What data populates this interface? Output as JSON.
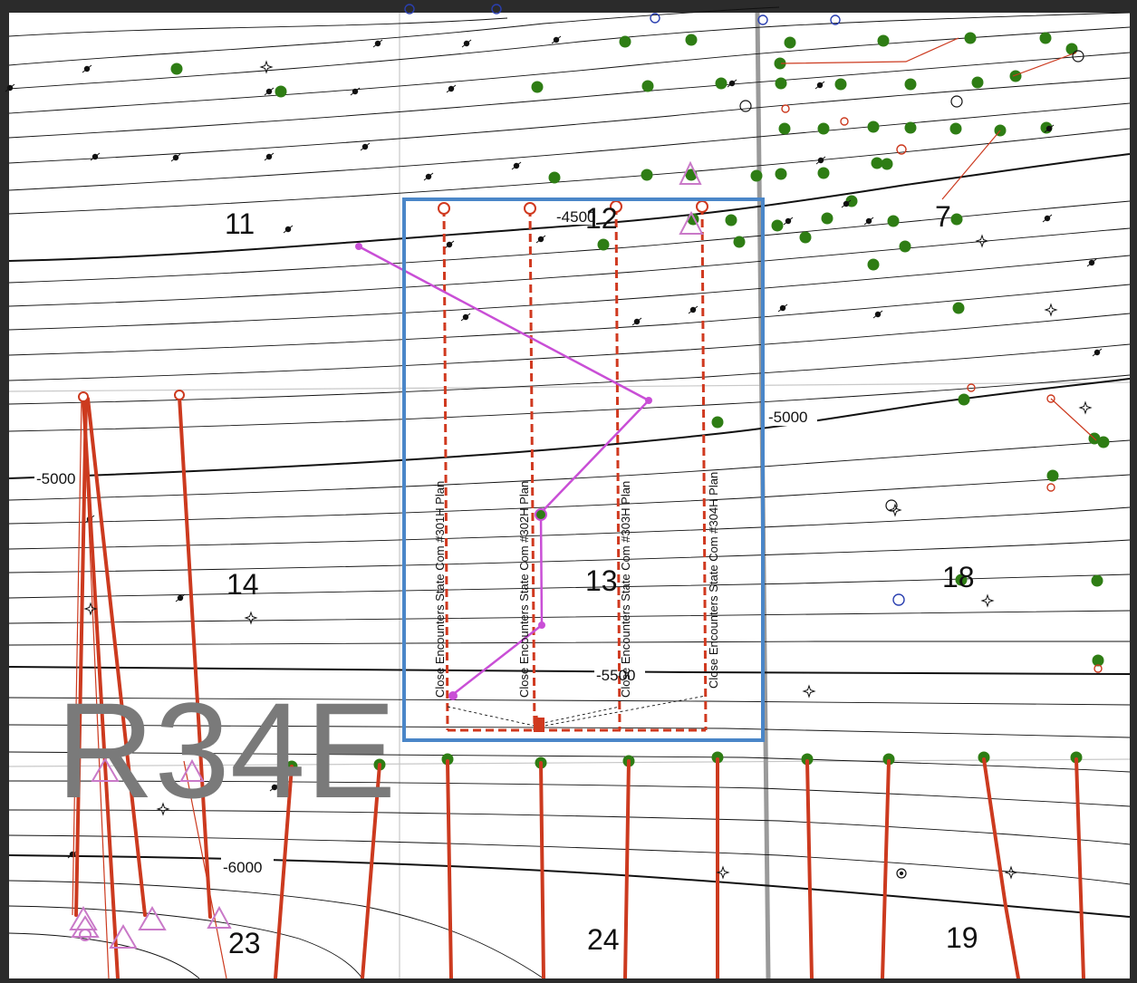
{
  "map": {
    "township_label": "R34E",
    "sections": [
      {
        "id": "s11",
        "label": "11"
      },
      {
        "id": "s12",
        "label": "12"
      },
      {
        "id": "s7",
        "label": "7"
      },
      {
        "id": "s14",
        "label": "14"
      },
      {
        "id": "s13",
        "label": "13"
      },
      {
        "id": "s18",
        "label": "18"
      },
      {
        "id": "s23",
        "label": "23"
      },
      {
        "id": "s24",
        "label": "24"
      },
      {
        "id": "s19",
        "label": "19"
      }
    ],
    "contour_labels": [
      {
        "id": "c4500",
        "label": "-4500"
      },
      {
        "id": "c5000a",
        "label": "-5000"
      },
      {
        "id": "c5000b",
        "label": "-5000"
      },
      {
        "id": "c5500",
        "label": "-5500"
      },
      {
        "id": "c6000",
        "label": "-6000"
      }
    ],
    "well_plans": [
      {
        "id": "w301",
        "label": "Close Encounters State Com #301H Plan"
      },
      {
        "id": "w302",
        "label": "Close Encounters State Com #302H Plan"
      },
      {
        "id": "w303",
        "label": "Close Encounters State Com #303H Plan"
      },
      {
        "id": "w304",
        "label": "Close Encounters State Com #304H Plan"
      }
    ],
    "colors": {
      "unit_outline": "#4a86c8",
      "planned_laterals": "#d0391f",
      "producing_well": "#2e7d14",
      "pilot_path": "#c94fd6",
      "contour": "#111111",
      "section_lines": "#c8c8c8",
      "range_line": "#9a9a9a"
    }
  }
}
